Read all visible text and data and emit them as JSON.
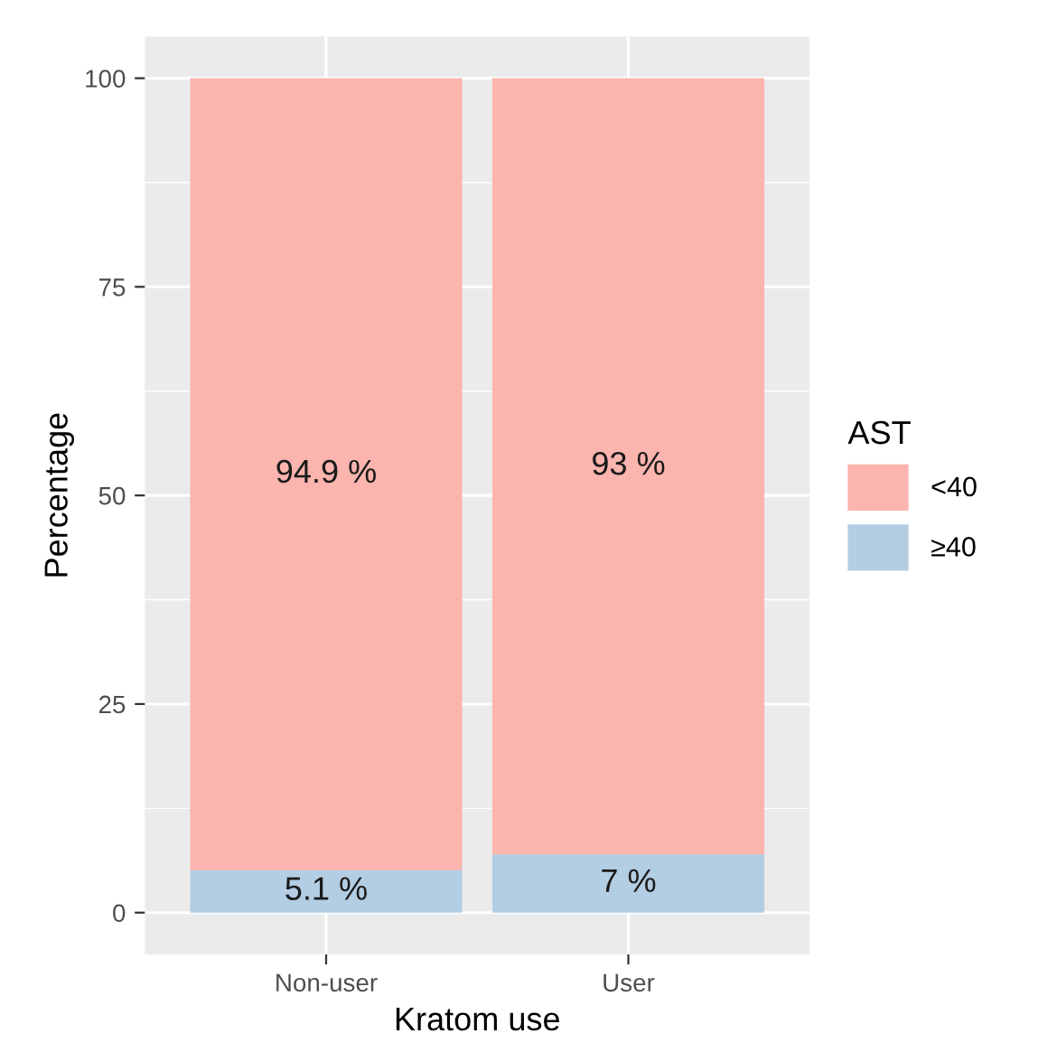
{
  "chart_data": {
    "type": "bar",
    "stacked": true,
    "xlabel": "Kratom use",
    "ylabel": "Percentage",
    "legend_title": "AST",
    "categories": [
      "Non-user",
      "User"
    ],
    "series": [
      {
        "name": "≥40",
        "color": "#b3cde3",
        "values": [
          5.1,
          7
        ],
        "value_labels": [
          "5.1 %",
          "7 %"
        ]
      },
      {
        "name": "<40",
        "color": "#fbb4ae",
        "values": [
          94.9,
          93
        ],
        "value_labels": [
          "94.9 %",
          "93 %"
        ]
      }
    ],
    "ylim": [
      -5,
      105
    ],
    "yticks": [
      0,
      25,
      50,
      75,
      100
    ],
    "grid": true,
    "legend": "right"
  }
}
